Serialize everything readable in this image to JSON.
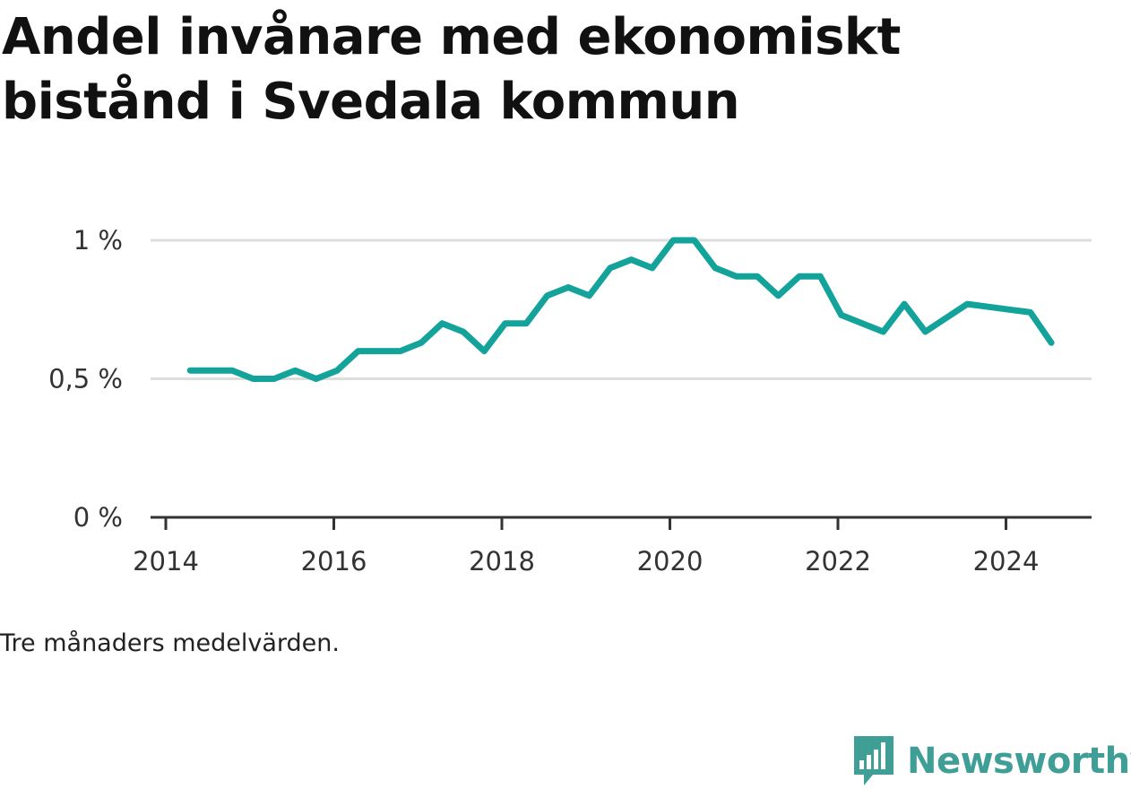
{
  "title": "Andel invånare med ekonomiskt bistånd i Svedala kommun",
  "note": "Tre månaders medelvärden.",
  "brand": {
    "name": "Newsworthy",
    "icon": "bar-chart-speech-bubble-icon",
    "color": "#3f9e96"
  },
  "colors": {
    "line": "#14a39a",
    "grid": "#dddddd",
    "axis": "#333333"
  },
  "chart_data": {
    "type": "line",
    "title": "Andel invånare med ekonomiskt bistånd i Svedala kommun",
    "xlabel": "",
    "ylabel": "",
    "xlim": [
      2014.0,
      2025.2
    ],
    "ylim": [
      0,
      1.0
    ],
    "y_ticks": [
      {
        "value": 0,
        "label": "0 %"
      },
      {
        "value": 0.5,
        "label": "0,5 %"
      },
      {
        "value": 1.0,
        "label": "1 %"
      }
    ],
    "x_ticks": [
      {
        "value": 2014,
        "label": "2014"
      },
      {
        "value": 2016,
        "label": "2016"
      },
      {
        "value": 2018,
        "label": "2018"
      },
      {
        "value": 2020,
        "label": "2020"
      },
      {
        "value": 2022,
        "label": "2022"
      },
      {
        "value": 2024,
        "label": "2024"
      }
    ],
    "grid": true,
    "series": [
      {
        "x": [
          2014.29,
          2014.54,
          2014.79,
          2015.04,
          2015.29,
          2015.54,
          2015.79,
          2016.04,
          2016.29,
          2016.54,
          2016.79,
          2017.04,
          2017.29,
          2017.54,
          2017.79,
          2018.04,
          2018.29,
          2018.54,
          2018.79,
          2019.04,
          2019.29,
          2019.54,
          2019.79,
          2020.04,
          2020.29,
          2020.54,
          2020.79,
          2021.04,
          2021.29,
          2021.54,
          2021.79,
          2022.04,
          2022.29,
          2022.54,
          2022.79,
          2023.04,
          2023.29,
          2023.54,
          2023.79,
          2024.04,
          2024.29,
          2024.54
        ],
        "values": [
          0.53,
          0.53,
          0.53,
          0.5,
          0.5,
          0.53,
          0.5,
          0.53,
          0.6,
          0.6,
          0.6,
          0.63,
          0.7,
          0.67,
          0.6,
          0.7,
          0.7,
          0.8,
          0.83,
          0.8,
          0.9,
          0.93,
          0.9,
          1.0,
          1.0,
          0.9,
          0.87,
          0.87,
          0.8,
          0.87,
          0.87,
          0.73,
          0.7,
          0.67,
          0.77,
          0.67,
          0.72,
          0.77,
          0.76,
          0.75,
          0.74,
          0.63
        ]
      }
    ]
  }
}
